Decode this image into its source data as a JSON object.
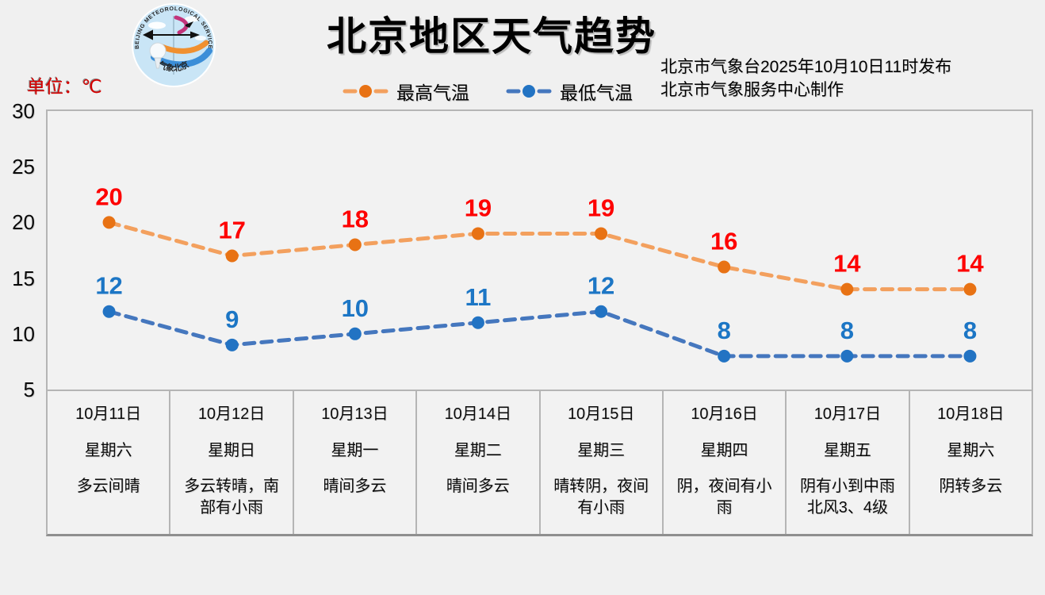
{
  "header": {
    "title": "北京地区天气趋势",
    "issue_line1": "北京市气象台2025年10月10日11时发布",
    "issue_line2": "北京市气象服务中心制作",
    "unit_label": "单位：℃"
  },
  "logo": {
    "arc_text": "BEIJING  METEOROLOGICAL  SERVICE",
    "bottom_text": "气象北京"
  },
  "legend": [
    {
      "label": "最高气温",
      "line_color": "#f3a05e",
      "marker_color": "#e87214"
    },
    {
      "label": "最低气温",
      "line_color": "#4577be",
      "marker_color": "#2273c3"
    }
  ],
  "colors": {
    "background": "#f0f0f0",
    "plot_border": "#b5b5b5",
    "table_bottom_border": "#8f8f8f",
    "high_value_label": "#fe0000",
    "low_value_label": "#1c76c5",
    "unit_label_red": "#d40000"
  },
  "chart_data": {
    "type": "line",
    "title": "北京地区天气趋势",
    "unit": "℃",
    "ylim": [
      5,
      30
    ],
    "yticks": [
      30,
      25,
      20,
      15,
      10,
      5
    ],
    "grid": false,
    "legend_position": "top-center",
    "line_style": "dashed",
    "categories": [
      "10月11日",
      "10月12日",
      "10月13日",
      "10月14日",
      "10月15日",
      "10月16日",
      "10月17日",
      "10月18日"
    ],
    "series": [
      {
        "name": "最高气温",
        "values": [
          20,
          17,
          18,
          19,
          19,
          16,
          14,
          14
        ],
        "line_color": "#f3a05e",
        "marker_color": "#e87214",
        "label_color": "#fe0000"
      },
      {
        "name": "最低气温",
        "values": [
          12,
          9,
          10,
          11,
          12,
          8,
          8,
          8
        ],
        "line_color": "#4577be",
        "marker_color": "#2273c3",
        "label_color": "#1c76c5"
      }
    ],
    "days": [
      {
        "date": "10月11日",
        "weekday": "星期六",
        "weather_lines": [
          "多云间晴"
        ]
      },
      {
        "date": "10月12日",
        "weekday": "星期日",
        "weather_lines": [
          "多云转晴，南",
          "部有小雨"
        ]
      },
      {
        "date": "10月13日",
        "weekday": "星期一",
        "weather_lines": [
          "晴间多云"
        ]
      },
      {
        "date": "10月14日",
        "weekday": "星期二",
        "weather_lines": [
          "晴间多云"
        ]
      },
      {
        "date": "10月15日",
        "weekday": "星期三",
        "weather_lines": [
          "晴转阴，夜间",
          "有小雨"
        ]
      },
      {
        "date": "10月16日",
        "weekday": "星期四",
        "weather_lines": [
          "阴，夜间有小",
          "雨"
        ]
      },
      {
        "date": "10月17日",
        "weekday": "星期五",
        "weather_lines": [
          "阴有小到中雨",
          "北风3、4级"
        ]
      },
      {
        "date": "10月18日",
        "weekday": "星期六",
        "weather_lines": [
          "阴转多云"
        ]
      }
    ]
  }
}
